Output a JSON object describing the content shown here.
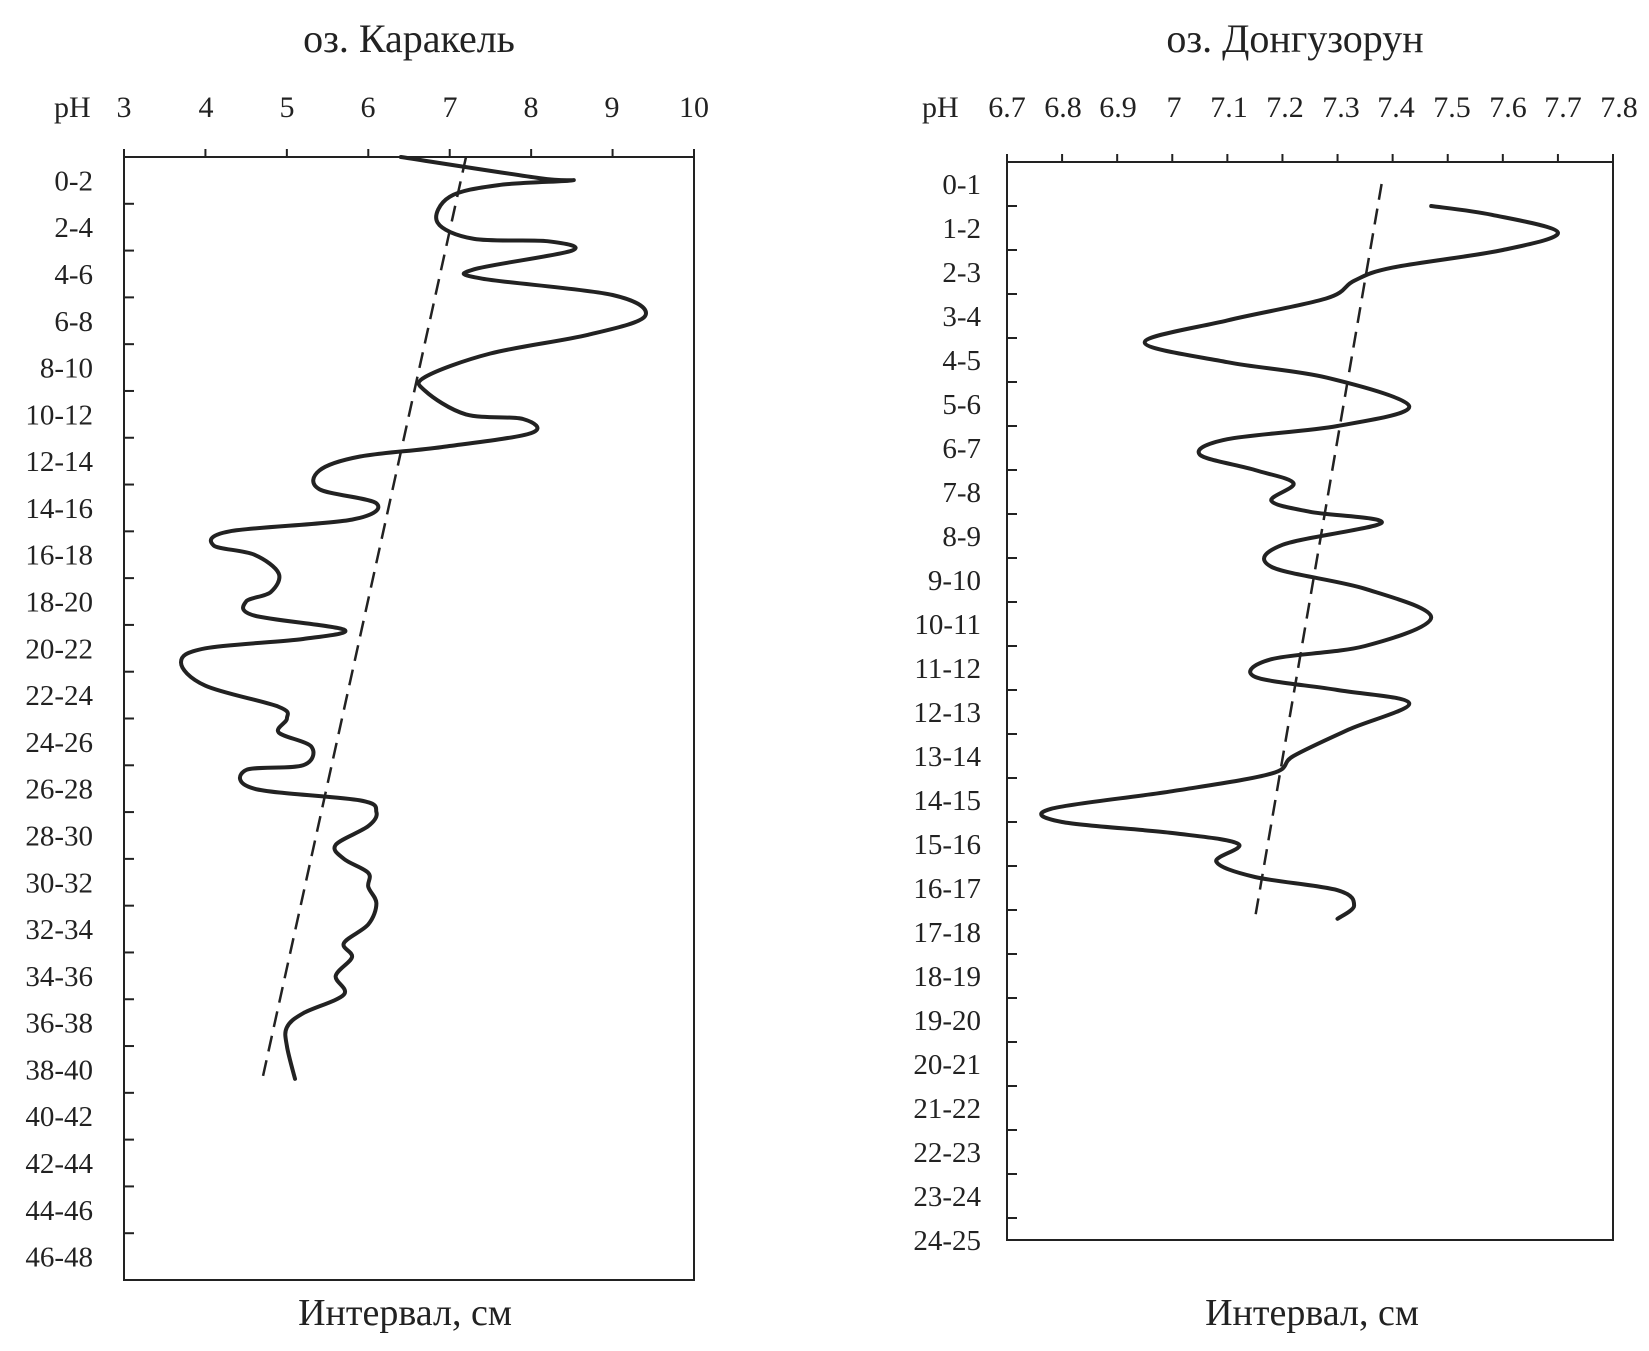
{
  "chart_data": [
    {
      "type": "line",
      "title": "оз. Каракель",
      "xaxis_prefix": "pH",
      "xlim": [
        3,
        10
      ],
      "xticks": [
        "3",
        "4",
        "5",
        "6",
        "7",
        "8",
        "9",
        "10"
      ],
      "ylabel": "Интервал, см",
      "categories": [
        "0-2",
        "2-4",
        "4-6",
        "6-8",
        "8-10",
        "10-12",
        "12-14",
        "14-16",
        "16-18",
        "18-20",
        "20-22",
        "22-24",
        "24-26",
        "26-28",
        "28-30",
        "30-32",
        "32-34",
        "34-36",
        "36-38",
        "38-40",
        "40-42",
        "42-44",
        "44-46",
        "46-48"
      ],
      "series": [
        {
          "style": "solid",
          "points": [
            [
              6.4,
              0
            ],
            [
              8.1,
              0.45
            ],
            [
              8.5,
              0.5
            ],
            [
              7.6,
              0.6
            ],
            [
              7.0,
              0.85
            ],
            [
              6.85,
              1.4
            ],
            [
              7.3,
              1.75
            ],
            [
              8.2,
              1.8
            ],
            [
              8.5,
              2.0
            ],
            [
              7.3,
              2.4
            ],
            [
              7.4,
              2.6
            ],
            [
              9.0,
              2.95
            ],
            [
              9.4,
              3.4
            ],
            [
              8.7,
              3.8
            ],
            [
              7.5,
              4.2
            ],
            [
              6.7,
              4.7
            ],
            [
              6.7,
              5.0
            ],
            [
              7.2,
              5.5
            ],
            [
              7.9,
              5.6
            ],
            [
              8.0,
              5.9
            ],
            [
              6.9,
              6.2
            ],
            [
              5.9,
              6.4
            ],
            [
              5.4,
              6.7
            ],
            [
              5.4,
              7.1
            ],
            [
              6.1,
              7.4
            ],
            [
              5.8,
              7.75
            ],
            [
              4.3,
              8.0
            ],
            [
              4.1,
              8.3
            ],
            [
              4.6,
              8.5
            ],
            [
              4.9,
              8.9
            ],
            [
              4.8,
              9.3
            ],
            [
              4.5,
              9.5
            ],
            [
              4.6,
              9.8
            ],
            [
              5.7,
              10.1
            ],
            [
              5.2,
              10.3
            ],
            [
              4.0,
              10.5
            ],
            [
              3.7,
              10.8
            ],
            [
              4.0,
              11.3
            ],
            [
              4.9,
              11.75
            ],
            [
              5.0,
              12.0
            ],
            [
              4.9,
              12.3
            ],
            [
              5.3,
              12.6
            ],
            [
              5.2,
              13.0
            ],
            [
              4.5,
              13.1
            ],
            [
              4.6,
              13.5
            ],
            [
              5.9,
              13.75
            ],
            [
              6.1,
              14.0
            ],
            [
              6.0,
              14.3
            ],
            [
              5.6,
              14.7
            ],
            [
              5.7,
              15.0
            ],
            [
              6.0,
              15.3
            ],
            [
              6.0,
              15.6
            ],
            [
              6.1,
              15.95
            ],
            [
              6.0,
              16.4
            ],
            [
              5.7,
              16.8
            ],
            [
              5.8,
              17.1
            ],
            [
              5.6,
              17.5
            ],
            [
              5.7,
              17.9
            ],
            [
              5.2,
              18.3
            ],
            [
              5.0,
              18.6
            ],
            [
              5.0,
              19.0
            ],
            [
              5.1,
              19.7
            ]
          ]
        },
        {
          "style": "dashed",
          "points": [
            [
              7.2,
              0
            ],
            [
              4.7,
              19.7
            ]
          ]
        }
      ]
    },
    {
      "type": "line",
      "title": "оз. Донгузорун",
      "xaxis_prefix": "pH",
      "xlim": [
        6.7,
        7.8
      ],
      "xticks": [
        "6.7",
        "6.8",
        "6.9",
        "7",
        "7.1",
        "7.2",
        "7.3",
        "7.4",
        "7.5",
        "7.6",
        "7.7",
        "7.8"
      ],
      "ylabel": "Интервал, см",
      "categories": [
        "0-1",
        "1-2",
        "2-3",
        "3-4",
        "4-5",
        "5-6",
        "6-7",
        "7-8",
        "8-9",
        "9-10",
        "10-11",
        "11-12",
        "12-13",
        "13-14",
        "14-15",
        "15-16",
        "16-17",
        "17-18",
        "18-19",
        "19-20",
        "20-21",
        "21-22",
        "22-23",
        "23-24",
        "24-25"
      ],
      "series": [
        {
          "style": "solid",
          "points": [
            [
              7.47,
              1.0
            ],
            [
              7.58,
              1.2
            ],
            [
              7.7,
              1.6
            ],
            [
              7.6,
              2.0
            ],
            [
              7.4,
              2.4
            ],
            [
              7.33,
              2.7
            ],
            [
              7.28,
              3.1
            ],
            [
              7.1,
              3.6
            ],
            [
              6.95,
              4.1
            ],
            [
              7.1,
              4.55
            ],
            [
              7.28,
              4.9
            ],
            [
              7.43,
              5.55
            ],
            [
              7.3,
              6.0
            ],
            [
              7.1,
              6.3
            ],
            [
              7.05,
              6.65
            ],
            [
              7.15,
              7.0
            ],
            [
              7.22,
              7.3
            ],
            [
              7.18,
              7.7
            ],
            [
              7.25,
              7.95
            ],
            [
              7.38,
              8.2
            ],
            [
              7.2,
              8.7
            ],
            [
              7.18,
              9.2
            ],
            [
              7.35,
              9.7
            ],
            [
              7.47,
              10.35
            ],
            [
              7.35,
              11.0
            ],
            [
              7.18,
              11.3
            ],
            [
              7.15,
              11.7
            ],
            [
              7.3,
              12.0
            ],
            [
              7.43,
              12.3
            ],
            [
              7.32,
              12.9
            ],
            [
              7.22,
              13.5
            ],
            [
              7.18,
              13.9
            ],
            [
              7.0,
              14.3
            ],
            [
              6.78,
              14.7
            ],
            [
              6.8,
              15.0
            ],
            [
              7.0,
              15.25
            ],
            [
              7.12,
              15.5
            ],
            [
              7.08,
              15.9
            ],
            [
              7.15,
              16.25
            ],
            [
              7.3,
              16.55
            ],
            [
              7.33,
              16.9
            ],
            [
              7.3,
              17.2
            ]
          ]
        },
        {
          "style": "dashed",
          "points": [
            [
              7.38,
              0.5
            ],
            [
              7.15,
              17.2
            ]
          ]
        }
      ]
    }
  ]
}
